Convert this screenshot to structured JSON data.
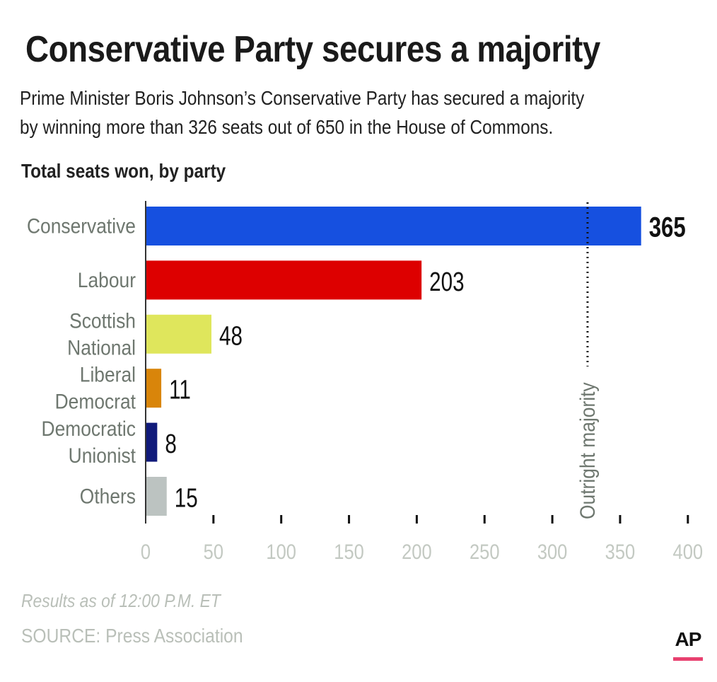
{
  "header": {
    "title": "Conservative Party secures a majority",
    "subtitle_lines": [
      "Prime Minister Boris Johnson’s Conservative Party has secured a majority",
      "by winning more than 326 seats out of 650 in the House of Commons."
    ]
  },
  "chart_data": {
    "type": "bar",
    "orientation": "horizontal",
    "title": "Total seats won, by party",
    "categories": [
      [
        "Conservative"
      ],
      [
        "Labour"
      ],
      [
        "Scottish",
        "National"
      ],
      [
        "Liberal",
        "Democrat"
      ],
      [
        "Democratic",
        "Unionist"
      ],
      [
        "Others"
      ]
    ],
    "values": [
      365,
      203,
      48,
      11,
      8,
      15
    ],
    "colors": [
      "#1650e0",
      "#dd0000",
      "#dfe65c",
      "#d9850a",
      "#101a7a",
      "#bcc3c1"
    ],
    "xlim": [
      0,
      400
    ],
    "xticks": [
      0,
      50,
      100,
      150,
      200,
      250,
      300,
      350,
      400
    ],
    "reference_line": {
      "value": 326,
      "label": "Outright majority"
    },
    "grid": false,
    "legend": "none"
  },
  "footer": {
    "note": "Results as of 12:00 P.M. ET",
    "source": "SOURCE: Press Association",
    "logo_text": "AP"
  }
}
